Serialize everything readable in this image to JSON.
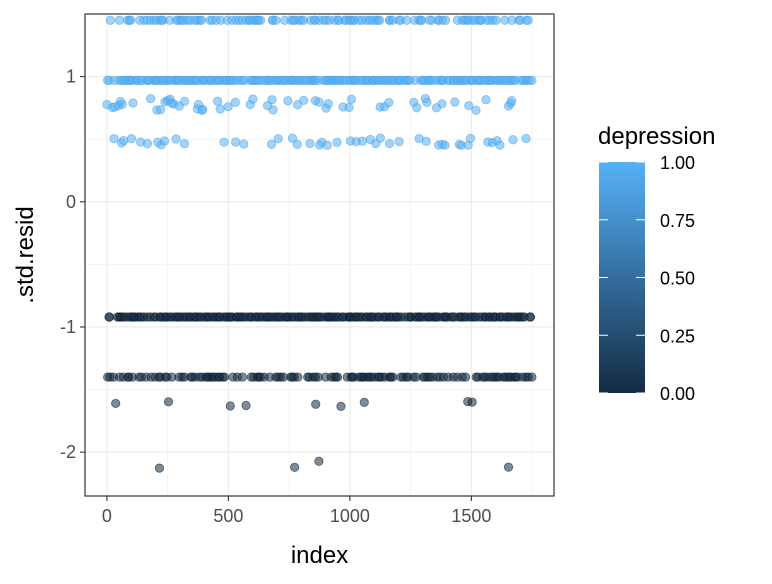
{
  "chart_data": {
    "type": "scatter",
    "title": "",
    "xlabel": "index",
    "ylabel": ".std.resid",
    "xlim": [
      -90,
      1840
    ],
    "ylim": [
      -2.35,
      1.5
    ],
    "x_ticks": [
      0,
      500,
      1000,
      1500
    ],
    "x_tick_labels": [
      "0",
      "500",
      "1000",
      "1500"
    ],
    "y_ticks": [
      -2,
      -1,
      0,
      1
    ],
    "y_tick_labels": [
      "-2",
      "-1",
      "0",
      "1"
    ],
    "x_minor_ticks": [
      250,
      750,
      1250,
      1750
    ],
    "y_minor_ticks": [
      -1.5,
      -0.5,
      0.5
    ],
    "grid": true,
    "color_legend": {
      "title": "depression",
      "position": "right",
      "ticks": [
        1.0,
        0.75,
        0.5,
        0.25,
        0.0
      ],
      "tick_labels": [
        "1.00",
        "0.75",
        "0.50",
        "0.25",
        "0.00"
      ],
      "low_color": "#132B43",
      "high_color": "#56B1F7"
    },
    "x_range": [
      0,
      1750
    ],
    "bands": [
      {
        "depression": 1,
        "y": 1.45,
        "density": 0.6
      },
      {
        "depression": 1,
        "y": 0.97,
        "density": 0.95
      },
      {
        "depression": 1,
        "y": 0.78,
        "density": 0.25,
        "jitter": 0.05
      },
      {
        "depression": 1,
        "y": 0.48,
        "density": 0.2,
        "jitter": 0.03
      },
      {
        "depression": 0,
        "y": -0.92,
        "density": 0.95
      },
      {
        "depression": 0,
        "y": -1.4,
        "density": 0.6
      },
      {
        "depression": 0,
        "y": -1.62,
        "density": 0.04,
        "jitter": 0.04
      },
      {
        "depression": 0,
        "y": -2.1,
        "density": 0.03,
        "jitter": 0.04
      }
    ]
  }
}
